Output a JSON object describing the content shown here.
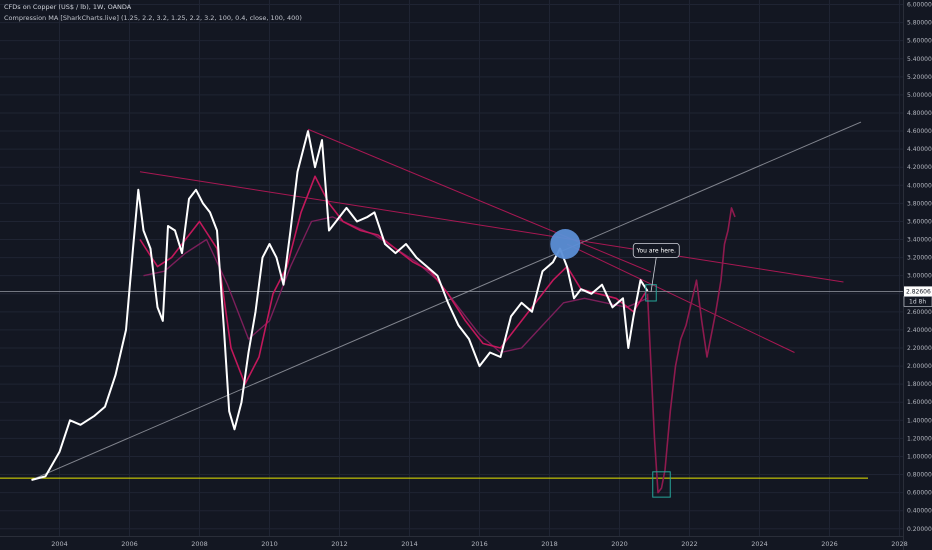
{
  "header": {
    "symbol_line": "CFDs on Copper (US$ / lb), 1W, OANDA",
    "indicator_line": "Compression MA [SharkCharts.live] (1.25, 2.2, 3.2, 1.25, 2.2, 3.2, 100, 0.4, close, 100, 400)"
  },
  "colors": {
    "background": "#131722",
    "price": "#ffffff",
    "ma_fast": "#c2185b",
    "ma_slow": "#7b1f5a",
    "projection": "#8e1a4e",
    "trendline": "#c2185b",
    "support": "#e6e600",
    "long_trend": "#9598a1",
    "circle": "#5b8ed6",
    "box": "#26a69a"
  },
  "chart_data": {
    "type": "line",
    "title": "CFDs on Copper (US$ / lb), 1W, OANDA",
    "xlabel": "",
    "ylabel": "",
    "xlim": [
      2002.3,
      2028.1
    ],
    "ylim": [
      0.12,
      6.05
    ],
    "x_ticks": [
      "2004",
      "2006",
      "2008",
      "2010",
      "2012",
      "2014",
      "2016",
      "2018",
      "2020",
      "2022",
      "2024",
      "2026",
      "2028"
    ],
    "x_tick_values": [
      2004,
      2006,
      2008,
      2010,
      2012,
      2014,
      2016,
      2018,
      2020,
      2022,
      2024,
      2026,
      2028
    ],
    "y_ticks": [
      "6.00000",
      "5.80000",
      "5.60000",
      "5.40000",
      "5.20000",
      "5.00000",
      "4.80000",
      "4.60000",
      "4.40000",
      "4.20000",
      "4.00000",
      "3.80000",
      "3.60000",
      "3.40000",
      "3.20000",
      "3.00000",
      "2.80000",
      "2.60000",
      "2.40000",
      "2.20000",
      "2.00000",
      "1.80000",
      "1.60000",
      "1.40000",
      "1.20000",
      "1.00000",
      "0.80000",
      "0.60000",
      "0.40000",
      "0.20000"
    ],
    "y_tick_values": [
      6.0,
      5.8,
      5.6,
      5.4,
      5.2,
      5.0,
      4.8,
      4.6,
      4.4,
      4.2,
      4.0,
      3.8,
      3.6,
      3.4,
      3.2,
      3.0,
      2.8,
      2.6,
      2.4,
      2.2,
      2.0,
      1.8,
      1.6,
      1.4,
      1.2,
      1.0,
      0.8,
      0.6,
      0.4,
      0.2
    ],
    "current_price": 2.82606,
    "current_price_label": "2.82606",
    "countdown_label": "1d 8h",
    "series": [
      {
        "role": "price",
        "x": [
          2003.2,
          2003.6,
          2004.0,
          2004.3,
          2004.6,
          2005.0,
          2005.3,
          2005.6,
          2005.9,
          2006.1,
          2006.25,
          2006.4,
          2006.6,
          2006.8,
          2006.95,
          2007.1,
          2007.3,
          2007.5,
          2007.7,
          2007.9,
          2008.1,
          2008.3,
          2008.5,
          2008.7,
          2008.85,
          2009.0,
          2009.2,
          2009.4,
          2009.6,
          2009.8,
          2010.0,
          2010.2,
          2010.4,
          2010.6,
          2010.8,
          2011.0,
          2011.1,
          2011.3,
          2011.5,
          2011.7,
          2011.9,
          2012.2,
          2012.5,
          2012.8,
          2013.0,
          2013.3,
          2013.6,
          2013.9,
          2014.2,
          2014.5,
          2014.8,
          2015.1,
          2015.4,
          2015.7,
          2016.0,
          2016.3,
          2016.6,
          2016.9,
          2017.2,
          2017.5,
          2017.8,
          2018.1,
          2018.3,
          2018.5,
          2018.7,
          2018.9,
          2019.2,
          2019.5,
          2019.8,
          2020.1,
          2020.25,
          2020.4,
          2020.6,
          2020.8
        ],
        "values": [
          0.74,
          0.78,
          1.05,
          1.4,
          1.35,
          1.45,
          1.55,
          1.9,
          2.4,
          3.3,
          3.95,
          3.5,
          3.3,
          2.65,
          2.5,
          3.55,
          3.5,
          3.25,
          3.85,
          3.95,
          3.8,
          3.7,
          3.5,
          2.4,
          1.5,
          1.3,
          1.6,
          2.15,
          2.6,
          3.2,
          3.35,
          3.2,
          2.9,
          3.5,
          4.15,
          4.45,
          4.6,
          4.2,
          4.5,
          3.5,
          3.6,
          3.75,
          3.6,
          3.65,
          3.7,
          3.35,
          3.25,
          3.35,
          3.2,
          3.1,
          3.0,
          2.7,
          2.45,
          2.3,
          2.0,
          2.15,
          2.1,
          2.55,
          2.7,
          2.6,
          3.05,
          3.15,
          3.3,
          3.1,
          2.75,
          2.85,
          2.8,
          2.9,
          2.65,
          2.75,
          2.2,
          2.55,
          2.95,
          2.83
        ]
      },
      {
        "role": "ma-fast",
        "x": [
          2006.3,
          2006.8,
          2007.2,
          2007.6,
          2008.0,
          2008.5,
          2008.9,
          2009.3,
          2009.7,
          2010.1,
          2010.5,
          2010.9,
          2011.3,
          2011.7,
          2012.1,
          2012.6,
          2013.1,
          2013.6,
          2014.1,
          2014.6,
          2015.1,
          2015.6,
          2016.1,
          2016.6,
          2017.1,
          2017.6,
          2018.1,
          2018.5,
          2018.9,
          2019.4,
          2019.9,
          2020.4,
          2020.8
        ],
        "values": [
          3.4,
          3.1,
          3.2,
          3.4,
          3.6,
          3.3,
          2.2,
          1.8,
          2.1,
          2.8,
          3.1,
          3.7,
          4.1,
          3.8,
          3.6,
          3.5,
          3.45,
          3.3,
          3.15,
          3.05,
          2.8,
          2.5,
          2.25,
          2.2,
          2.45,
          2.7,
          2.95,
          3.1,
          2.85,
          2.8,
          2.75,
          2.6,
          2.85
        ]
      },
      {
        "role": "ma-slow",
        "x": [
          2006.4,
          2007.0,
          2007.6,
          2008.2,
          2008.8,
          2009.4,
          2010.0,
          2010.6,
          2011.2,
          2011.8,
          2012.4,
          2013.0,
          2013.6,
          2014.2,
          2014.8,
          2015.4,
          2016.0,
          2016.6,
          2017.2,
          2017.8,
          2018.4,
          2019.0,
          2019.6,
          2020.2,
          2020.8
        ],
        "values": [
          3.0,
          3.05,
          3.25,
          3.4,
          2.9,
          2.3,
          2.5,
          3.1,
          3.6,
          3.65,
          3.55,
          3.45,
          3.3,
          3.15,
          2.95,
          2.65,
          2.35,
          2.15,
          2.2,
          2.45,
          2.7,
          2.75,
          2.7,
          2.65,
          2.75
        ]
      },
      {
        "role": "projection",
        "x": [
          2020.8,
          2020.9,
          2021.0,
          2021.1,
          2021.2,
          2021.3,
          2021.45,
          2021.6,
          2021.75,
          2021.9,
          2022.05,
          2022.2,
          2022.35,
          2022.5,
          2022.6,
          2022.75,
          2022.9,
          2023.0,
          2023.1,
          2023.2,
          2023.3
        ],
        "values": [
          2.8,
          2.0,
          1.2,
          0.6,
          0.65,
          0.85,
          1.5,
          2.0,
          2.3,
          2.45,
          2.7,
          2.95,
          2.5,
          2.1,
          2.3,
          2.6,
          2.95,
          3.35,
          3.5,
          3.75,
          3.65
        ]
      }
    ],
    "annotations": [
      {
        "type": "support",
        "x": [
          2002.3,
          2027.1
        ],
        "values": [
          0.76,
          0.76
        ]
      },
      {
        "type": "trend",
        "x": [
          2003.2,
          2026.9
        ],
        "values": [
          0.74,
          4.7
        ]
      },
      {
        "type": "trend",
        "x": [
          2011.1,
          2020.9
        ],
        "values": [
          4.62,
          3.04
        ]
      },
      {
        "type": "trend",
        "x": [
          2006.3,
          2026.4
        ],
        "values": [
          4.15,
          2.93
        ]
      },
      {
        "type": "trend",
        "x": [
          2018.5,
          2025.0
        ],
        "values": [
          3.35,
          2.15
        ]
      },
      {
        "type": "circle",
        "x": 2018.45,
        "value": 3.35
      },
      {
        "type": "box",
        "x": [
          2020.75,
          2021.05
        ],
        "values": [
          2.72,
          2.9
        ]
      },
      {
        "type": "box",
        "x": [
          2020.95,
          2021.45
        ],
        "values": [
          0.55,
          0.83
        ]
      },
      {
        "type": "callout",
        "text": "You are here.",
        "x": 2021.05,
        "value": 3.28,
        "target_x": 2020.9,
        "target_value": 2.82
      }
    ]
  }
}
